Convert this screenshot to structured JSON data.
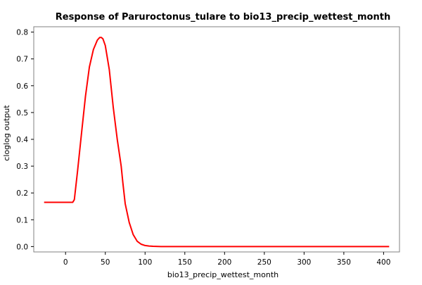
{
  "chart_data": {
    "type": "line",
    "title": "Response of Paruroctonus_tulare to bio13_precip_wettest_month",
    "xlabel": "bio13_precip_wettest_month",
    "ylabel": "cloglog output",
    "xlim": [
      -40,
      420
    ],
    "ylim": [
      -0.02,
      0.82
    ],
    "xticks": [
      0,
      50,
      100,
      150,
      200,
      250,
      300,
      350,
      400
    ],
    "yticks": [
      0.0,
      0.1,
      0.2,
      0.3,
      0.4,
      0.5,
      0.6,
      0.7,
      0.8
    ],
    "xtick_labels": [
      "0",
      "50",
      "100",
      "150",
      "200",
      "250",
      "300",
      "350",
      "400"
    ],
    "ytick_labels": [
      "0.0",
      "0.1",
      "0.2",
      "0.3",
      "0.4",
      "0.5",
      "0.6",
      "0.7",
      "0.8"
    ],
    "grid": true,
    "series": [
      {
        "color": "#ff0000",
        "x": [
          -27,
          0,
          9,
          11,
          15,
          20,
          25,
          30,
          35,
          40,
          43,
          45,
          47,
          50,
          55,
          60,
          65,
          70,
          72,
          75,
          80,
          85,
          90,
          95,
          100,
          105,
          110,
          120,
          150,
          200,
          250,
          300,
          350,
          407
        ],
        "y": [
          0.165,
          0.165,
          0.165,
          0.175,
          0.28,
          0.42,
          0.56,
          0.67,
          0.735,
          0.77,
          0.78,
          0.78,
          0.775,
          0.75,
          0.66,
          0.52,
          0.4,
          0.3,
          0.24,
          0.16,
          0.09,
          0.045,
          0.02,
          0.009,
          0.004,
          0.002,
          0.001,
          0.0,
          0.0,
          0.0,
          0.0,
          0.0,
          0.0,
          0.0
        ]
      }
    ]
  }
}
